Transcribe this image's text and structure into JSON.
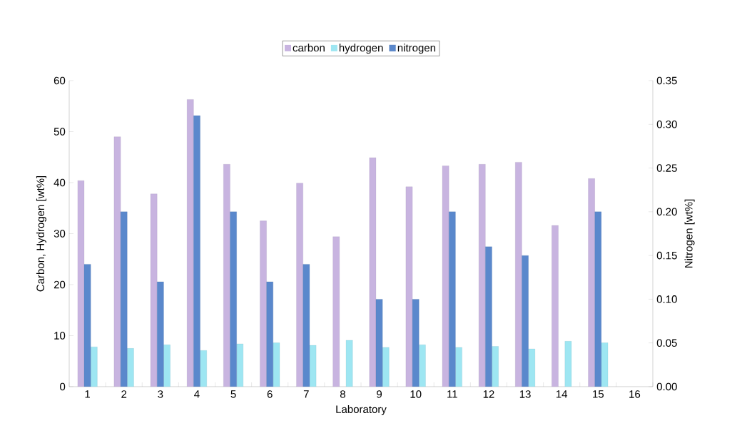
{
  "chart_data": {
    "type": "bar",
    "xlabel": "Laboratory",
    "ylabel": "Carbon, Hydrogen [wt%]",
    "y2label": "Nitrogen [wt%]",
    "categories": [
      "1",
      "2",
      "3",
      "4",
      "5",
      "6",
      "7",
      "8",
      "9",
      "10",
      "11",
      "12",
      "13",
      "14",
      "15",
      "16"
    ],
    "series": [
      {
        "name": "carbon",
        "color": "#c8b4e0",
        "values": [
          40.4,
          49.0,
          37.8,
          56.3,
          43.6,
          32.5,
          39.9,
          29.4,
          44.9,
          39.2,
          43.3,
          43.6,
          44.0,
          31.6,
          40.8,
          null
        ]
      },
      {
        "name": "hydrogen",
        "color": "#9ee6f2",
        "values": [
          7.8,
          7.5,
          8.2,
          7.1,
          8.4,
          8.6,
          8.1,
          9.1,
          7.7,
          8.2,
          7.7,
          7.9,
          7.4,
          8.9,
          8.6,
          null
        ]
      },
      {
        "name": "nitrogen",
        "color": "#5a88cc",
        "axis": "y2",
        "values": [
          0.14,
          0.2,
          0.12,
          0.31,
          0.2,
          0.12,
          0.14,
          null,
          0.1,
          0.1,
          0.2,
          0.16,
          0.15,
          null,
          0.2,
          null
        ]
      }
    ],
    "ylim": [
      0,
      60
    ],
    "yticks": [
      0,
      10,
      20,
      30,
      40,
      50,
      60
    ],
    "y2lim": [
      0,
      0.35
    ],
    "y2ticks": [
      {
        "value": 0,
        "label": "0.00"
      },
      {
        "value": 0.05,
        "label": "0.05"
      },
      {
        "value": 0.1,
        "label": "0.10"
      },
      {
        "value": 0.15,
        "label": "0.15"
      },
      {
        "value": 0.2,
        "label": "0.20"
      },
      {
        "value": 0.25,
        "label": "0.25"
      },
      {
        "value": 0.3,
        "label": "0.30"
      },
      {
        "value": 0.35,
        "label": "0.35"
      }
    ],
    "grid": false,
    "legend": "top"
  }
}
